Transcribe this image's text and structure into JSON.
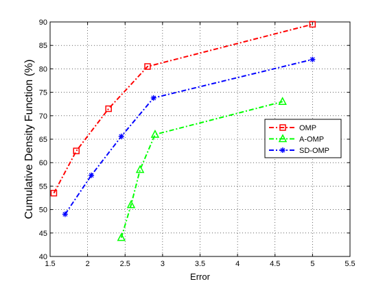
{
  "chart_data": {
    "type": "line",
    "title": "",
    "xlabel": "Error",
    "ylabel": "Cumulative Density Function (%)",
    "xlim": [
      1.5,
      5.5
    ],
    "ylim": [
      40,
      90
    ],
    "xticks": [
      1.5,
      2,
      2.5,
      3,
      3.5,
      4,
      4.5,
      5,
      5.5
    ],
    "yticks": [
      40,
      45,
      50,
      55,
      60,
      65,
      70,
      75,
      80,
      85,
      90
    ],
    "xtick_labels": [
      "1.5",
      "2",
      "2.5",
      "3",
      "3.5",
      "4",
      "4.5",
      "5",
      "5.5"
    ],
    "ytick_labels": [
      "40",
      "45",
      "50",
      "55",
      "60",
      "65",
      "70",
      "75",
      "80",
      "85",
      "90"
    ],
    "grid": true,
    "legend_position": "right",
    "series": [
      {
        "name": "OMP",
        "color": "#ff0000",
        "marker": "square",
        "line_style": "dash-dot",
        "x": [
          1.55,
          1.85,
          2.28,
          2.8,
          5.0
        ],
        "y": [
          53.5,
          62.5,
          71.5,
          80.5,
          89.5
        ]
      },
      {
        "name": "A-OMP",
        "color": "#00ff00",
        "marker": "triangle",
        "line_style": "dash-dot",
        "x": [
          2.45,
          2.58,
          2.7,
          2.9,
          4.6
        ],
        "y": [
          44,
          51,
          58.5,
          66,
          73
        ]
      },
      {
        "name": "SD-OMP",
        "color": "#0000ff",
        "marker": "star",
        "line_style": "dash-dot",
        "x": [
          1.7,
          2.05,
          2.45,
          2.88,
          5.0
        ],
        "y": [
          49,
          57.3,
          65.6,
          73.8,
          82
        ]
      }
    ]
  }
}
